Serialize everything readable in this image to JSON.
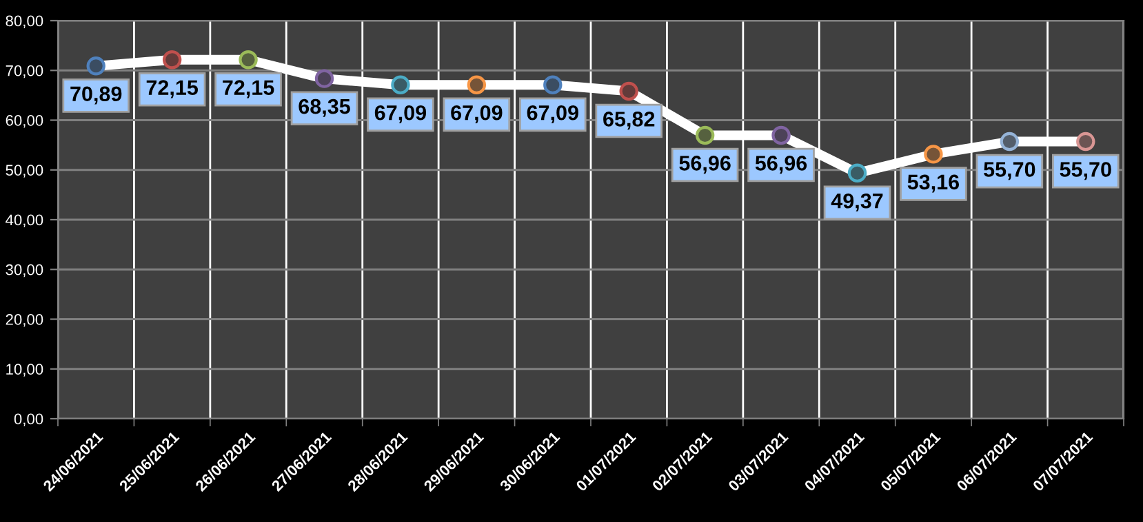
{
  "chart_data": {
    "type": "line",
    "categories": [
      "24/06/2021",
      "25/06/2021",
      "26/06/2021",
      "27/06/2021",
      "28/06/2021",
      "29/06/2021",
      "30/06/2021",
      "01/07/2021",
      "02/07/2021",
      "03/07/2021",
      "04/07/2021",
      "05/07/2021",
      "06/07/2021",
      "07/07/2021"
    ],
    "values": [
      70.89,
      72.15,
      72.15,
      68.35,
      67.09,
      67.09,
      67.09,
      65.82,
      56.96,
      56.96,
      49.37,
      53.16,
      55.7,
      55.7
    ],
    "value_labels": [
      "70,89",
      "72,15",
      "72,15",
      "68,35",
      "67,09",
      "67,09",
      "67,09",
      "65,82",
      "56,96",
      "56,96",
      "49,37",
      "53,16",
      "55,70",
      "55,70"
    ],
    "color": "#ffffff",
    "colors": [
      "#4f81bd",
      "#c0504d",
      "#9bbb59",
      "#8064a2",
      "#4bacc6",
      "#f79646",
      "#4f81bd",
      "#c0504d",
      "#9bbb59",
      "#8064a2",
      "#4bacc6",
      "#f79646",
      "#95b3d7",
      "#d99694"
    ],
    "ylim": [
      0,
      80
    ],
    "yticks": [
      {
        "value": 0,
        "label": "0,00"
      },
      {
        "value": 10,
        "label": "10,00"
      },
      {
        "value": 20,
        "label": "20,00"
      },
      {
        "value": 30,
        "label": "30,00"
      },
      {
        "value": 40,
        "label": "40,00"
      },
      {
        "value": 50,
        "label": "50,00"
      },
      {
        "value": 60,
        "label": "60,00"
      },
      {
        "value": 70,
        "label": "70,00"
      },
      {
        "value": 80,
        "label": "80,00"
      }
    ],
    "grid": true,
    "marker": "circle",
    "line_style": "solid"
  }
}
